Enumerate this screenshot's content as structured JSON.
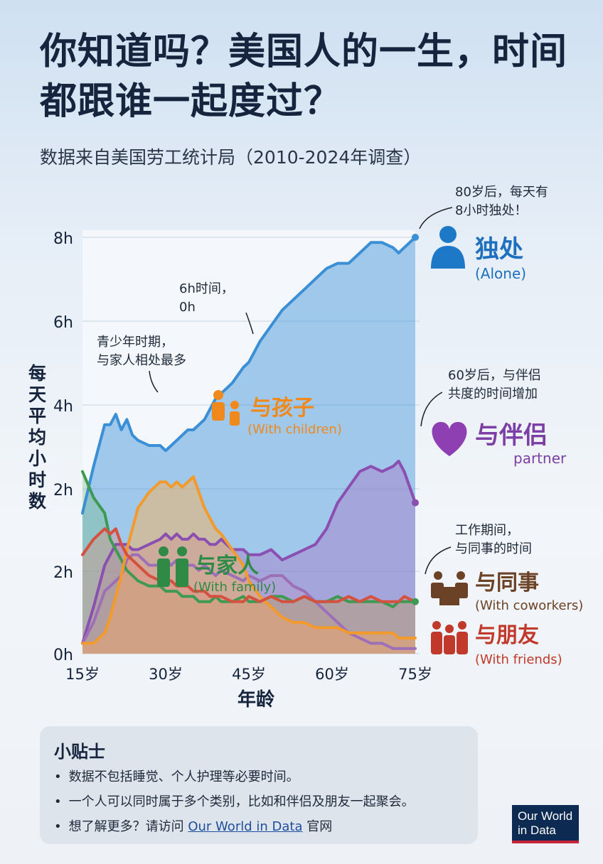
{
  "header": {
    "title": "你知道吗？美国人的一生，时间都跟谁一起度过？",
    "subtitle": "数据来自美国劳工统计局（2010-2024年调查）"
  },
  "chart_data": {
    "type": "area",
    "xlabel": "年龄",
    "ylabel": "每天平均小时数",
    "x_ticks": [
      "15岁",
      "30岁",
      "45岁",
      "60岁",
      "75岁"
    ],
    "y_ticks": [
      "0h",
      "2h",
      "2h",
      "4h",
      "6h",
      "8h"
    ],
    "x": [
      15,
      17,
      19,
      20,
      21,
      22,
      23,
      24,
      25,
      27,
      29,
      30,
      31,
      32,
      33,
      34,
      35,
      36,
      37,
      38,
      39,
      40,
      42,
      44,
      45,
      47,
      49,
      51,
      53,
      55,
      57,
      59,
      61,
      63,
      65,
      67,
      69,
      71,
      72,
      73,
      75
    ],
    "series": [
      {
        "name": "独处",
        "sublabel": "(Alone)",
        "color": "#3a8fd6",
        "values": [
          2.7,
          3.6,
          4.4,
          4.4,
          4.6,
          4.3,
          4.5,
          4.2,
          4.1,
          4.0,
          4.0,
          3.9,
          4.0,
          4.1,
          4.2,
          4.3,
          4.3,
          4.4,
          4.5,
          4.7,
          4.9,
          5.0,
          5.2,
          5.5,
          5.6,
          6.0,
          6.3,
          6.6,
          6.8,
          7.0,
          7.2,
          7.4,
          7.5,
          7.5,
          7.7,
          7.9,
          7.9,
          7.8,
          7.7,
          7.8,
          8.0
        ]
      },
      {
        "name": "与伴侣",
        "sublabel": "partner",
        "color": "#8a4fb0",
        "values": [
          0.2,
          0.9,
          1.7,
          1.9,
          2.1,
          2.1,
          2.1,
          2.0,
          2.0,
          2.1,
          2.2,
          2.3,
          2.2,
          2.3,
          2.2,
          2.2,
          2.3,
          2.2,
          2.2,
          2.1,
          2.1,
          2.2,
          2.0,
          2.0,
          1.9,
          1.9,
          2.0,
          1.8,
          1.9,
          2.0,
          2.1,
          2.4,
          2.9,
          3.2,
          3.5,
          3.6,
          3.5,
          3.6,
          3.7,
          3.5,
          2.9
        ]
      },
      {
        "name": "与家人",
        "sublabel": "(With family)",
        "color": "#3e9a52",
        "values": [
          3.5,
          3.0,
          2.7,
          2.2,
          2.0,
          1.8,
          1.6,
          1.5,
          1.4,
          1.3,
          1.3,
          1.2,
          1.2,
          1.2,
          1.1,
          1.1,
          1.1,
          1.0,
          1.0,
          1.0,
          1.1,
          1.0,
          1.0,
          1.1,
          1.0,
          1.0,
          1.1,
          1.1,
          1.0,
          1.1,
          1.0,
          1.0,
          1.1,
          1.0,
          1.0,
          1.0,
          1.0,
          0.9,
          1.0,
          1.0,
          1.0
        ]
      },
      {
        "name": "与孩子",
        "sublabel": "(With children)",
        "color": "#f39a2c",
        "values": [
          0.2,
          0.2,
          0.4,
          0.7,
          1.1,
          1.5,
          2.0,
          2.4,
          2.8,
          3.1,
          3.3,
          3.3,
          3.2,
          3.3,
          3.2,
          3.3,
          3.4,
          3.1,
          2.8,
          2.6,
          2.4,
          2.3,
          2.0,
          1.7,
          1.4,
          1.1,
          0.9,
          0.7,
          0.6,
          0.6,
          0.5,
          0.5,
          0.5,
          0.4,
          0.4,
          0.4,
          0.4,
          0.4,
          0.3,
          0.3,
          0.3
        ]
      },
      {
        "name": "与同事",
        "sublabel": "(With coworkers)",
        "color": "#9d6fb7",
        "values": [
          0.2,
          0.6,
          1.2,
          1.3,
          1.4,
          1.5,
          1.8,
          1.9,
          1.9,
          1.7,
          1.7,
          1.8,
          1.7,
          1.8,
          1.7,
          1.7,
          1.7,
          1.6,
          1.7,
          1.6,
          1.5,
          1.6,
          1.5,
          1.4,
          1.5,
          1.4,
          1.5,
          1.5,
          1.3,
          1.2,
          1.0,
          0.8,
          0.6,
          0.4,
          0.3,
          0.2,
          0.2,
          0.1,
          0.1,
          0.1,
          0.1
        ]
      },
      {
        "name": "与朋友",
        "sublabel": "(With friends)",
        "color": "#d4513f",
        "values": [
          1.9,
          2.2,
          2.4,
          2.3,
          2.4,
          2.1,
          1.9,
          1.8,
          1.7,
          1.5,
          1.4,
          1.4,
          1.4,
          1.3,
          1.3,
          1.3,
          1.2,
          1.2,
          1.2,
          1.1,
          1.1,
          1.1,
          1.0,
          1.0,
          1.1,
          1.0,
          1.1,
          1.0,
          1.0,
          1.1,
          1.0,
          1.0,
          1.0,
          1.1,
          1.0,
          1.1,
          1.0,
          1.0,
          1.0,
          1.1,
          1.0
        ]
      }
    ],
    "annotations": [
      "80岁后，每天有",
      "8小时独处！",
      "6h时间，",
      "0h",
      "青少年时期，",
      "与家人相处最多",
      "60岁后，与伴侣",
      "共度的时间增加",
      "工作期间，",
      "与同事的时间"
    ]
  },
  "colors": {
    "title": "#16253d",
    "alone": "#3a8fd6",
    "partner": "#8a4fb0",
    "family": "#3e9a52",
    "children": "#f39a2c",
    "coworkers": "#6b4226",
    "friends": "#c0392b"
  },
  "icons": {
    "alone": "person-icon",
    "partner": "heart-icon",
    "family": "couple-icon",
    "children": "parent-child-icon",
    "coworkers": "coworkers-icon",
    "friends": "friends-icon"
  },
  "tips": {
    "title": "小贴士",
    "items": [
      "数据不包括睡觉、个人护理等必要时间。",
      "一个人可以同时属于多个类别，比如和伴侣及朋友一起聚会。"
    ],
    "link_prefix": "想了解更多？请访问 ",
    "link_text": "Our World in Data",
    "link_suffix": " 官网"
  },
  "logo": {
    "line1": "Our World",
    "line2": "in Data"
  }
}
